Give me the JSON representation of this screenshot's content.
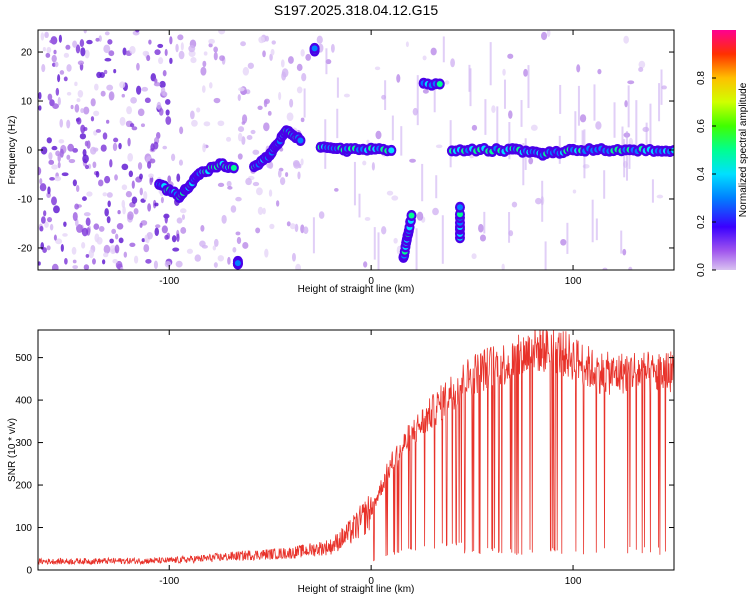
{
  "title": "S197.2025.318.04.12.G15",
  "chart_data": [
    {
      "type": "heatmap",
      "name": "spectrogram",
      "xlabel": "Height of straight line (km)",
      "ylabel": "Frequency (Hz)",
      "xlim": [
        -165,
        150
      ],
      "ylim": [
        -24.5,
        24.5
      ],
      "xticks": [
        -100,
        0,
        100
      ],
      "yticks": [
        -20,
        -10,
        0,
        10,
        20
      ],
      "colorbar": {
        "label": "Normalized spectral amplitude",
        "range": [
          0,
          1
        ],
        "ticks": [
          0.0,
          0.2,
          0.4,
          0.6,
          0.8
        ]
      },
      "tracks": [
        {
          "name": "descending-ramp",
          "x": [
            -105,
            -95,
            -85,
            -75,
            -68
          ],
          "y": [
            -7,
            -9.5,
            -5,
            -3,
            -3.5
          ]
        },
        {
          "name": "rising-ramp",
          "x": [
            -58,
            -50,
            -42,
            -35
          ],
          "y": [
            -3.5,
            -1,
            4,
            2
          ]
        },
        {
          "name": "zero-band-left",
          "x": [
            -25,
            -12,
            0,
            10
          ],
          "y": [
            0.8,
            0,
            0.3,
            0
          ]
        },
        {
          "name": "zero-band-right",
          "x": [
            40,
            70,
            85,
            100,
            150
          ],
          "y": [
            0,
            0,
            -0.8,
            0,
            0
          ]
        },
        {
          "name": "spot-upper",
          "x": [
            26,
            34
          ],
          "y": [
            13.5,
            13.5
          ]
        },
        {
          "name": "spot-top",
          "x": [
            -28,
            -28
          ],
          "y": [
            20.5,
            20.5
          ]
        },
        {
          "name": "spot-lower-left",
          "x": [
            -66,
            -66
          ],
          "y": [
            -23,
            -23
          ]
        },
        {
          "name": "spot-lower-mid",
          "x": [
            16,
            20
          ],
          "y": [
            -22,
            -13.5
          ]
        },
        {
          "name": "spot-vertical",
          "x": [
            44,
            44
          ],
          "y": [
            -18,
            -12
          ]
        }
      ]
    },
    {
      "type": "line",
      "name": "snr",
      "xlabel": "Height of straight line (km)",
      "ylabel": "SNR (10 * v/v)",
      "xlim": [
        -165,
        150
      ],
      "ylim": [
        0,
        565
      ],
      "xticks": [
        -100,
        0,
        100
      ],
      "yticks": [
        0,
        100,
        200,
        300,
        400,
        500
      ],
      "color": "#e8322a",
      "envelope": {
        "x": [
          -165,
          -100,
          -80,
          -60,
          -40,
          -20,
          -10,
          0,
          10,
          20,
          30,
          40,
          50,
          60,
          70,
          80,
          90,
          100,
          110,
          120,
          130,
          140,
          150
        ],
        "y": [
          20,
          22,
          28,
          35,
          40,
          55,
          90,
          140,
          250,
          320,
          370,
          420,
          460,
          480,
          490,
          520,
          520,
          500,
          470,
          460,
          470,
          460,
          470
        ]
      },
      "dropouts_from_x": 45,
      "dropout_level": 35
    }
  ]
}
